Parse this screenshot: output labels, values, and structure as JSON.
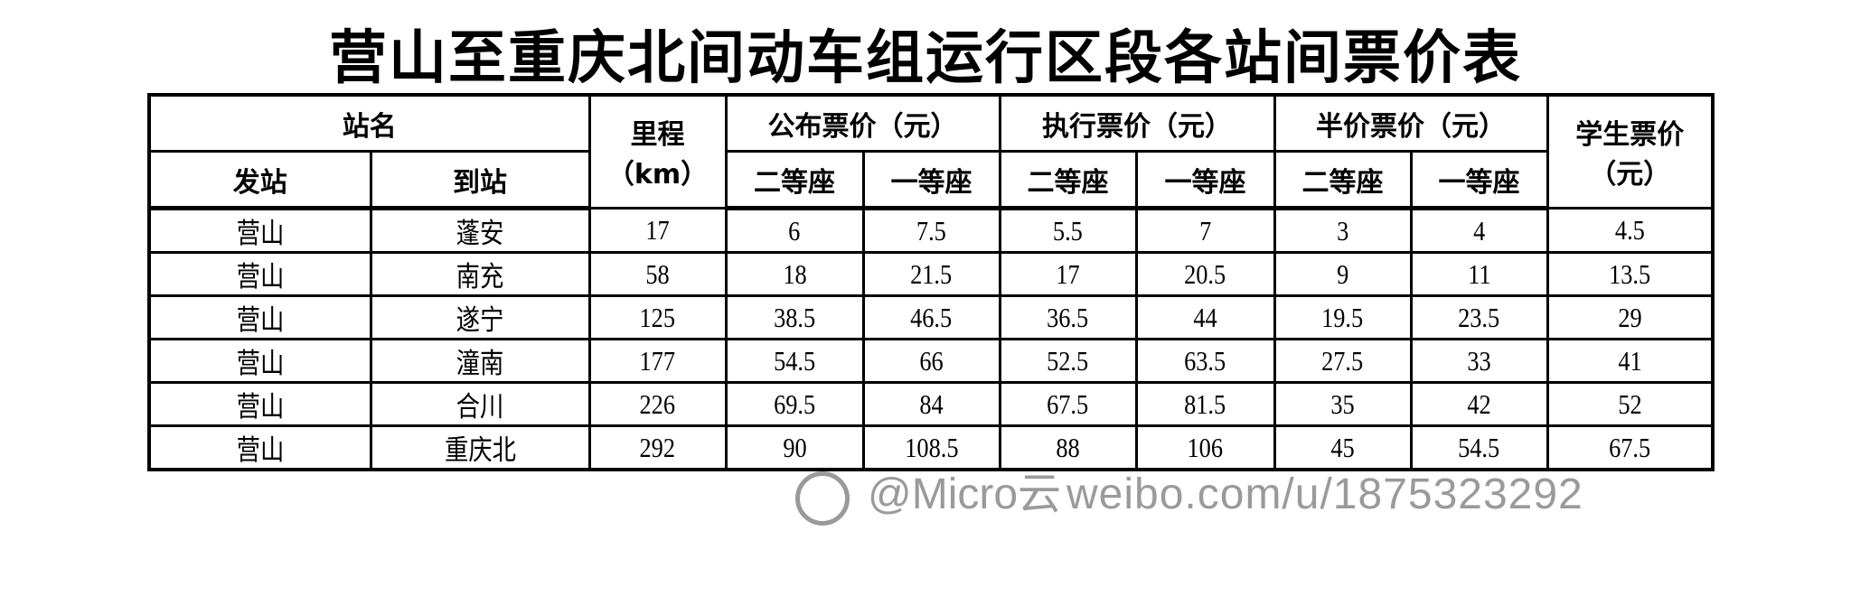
{
  "title": "营山至重庆北间动车组运行区段各站间票价表",
  "header": {
    "station_name": "站名",
    "from": "发站",
    "to": "到站",
    "distance": "里程",
    "distance_unit": "（km）",
    "published": "公布票价（元）",
    "executed": "执行票价（元）",
    "half": "半价票价（元）",
    "student": "学生票价",
    "student_unit": "（元）",
    "second_class": "二等座",
    "first_class": "一等座"
  },
  "rows": [
    {
      "from": "营山",
      "to": "蓬安",
      "km": "17",
      "pub2": "6",
      "pub1": "7.5",
      "exe2": "5.5",
      "exe1": "7",
      "half2": "3",
      "half1": "4",
      "student": "4.5"
    },
    {
      "from": "营山",
      "to": "南充",
      "km": "58",
      "pub2": "18",
      "pub1": "21.5",
      "exe2": "17",
      "exe1": "20.5",
      "half2": "9",
      "half1": "11",
      "student": "13.5"
    },
    {
      "from": "营山",
      "to": "遂宁",
      "km": "125",
      "pub2": "38.5",
      "pub1": "46.5",
      "exe2": "36.5",
      "exe1": "44",
      "half2": "19.5",
      "half1": "23.5",
      "student": "29"
    },
    {
      "from": "营山",
      "to": "潼南",
      "km": "177",
      "pub2": "54.5",
      "pub1": "66",
      "exe2": "52.5",
      "exe1": "63.5",
      "half2": "27.5",
      "half1": "33",
      "student": "41"
    },
    {
      "from": "营山",
      "to": "合川",
      "km": "226",
      "pub2": "69.5",
      "pub1": "84",
      "exe2": "67.5",
      "exe1": "81.5",
      "half2": "35",
      "half1": "42",
      "student": "52"
    },
    {
      "from": "营山",
      "to": "重庆北",
      "km": "292",
      "pub2": "90",
      "pub1": "108.5",
      "exe2": "88",
      "exe1": "106",
      "half2": "45",
      "half1": "54.5",
      "student": "67.5"
    }
  ],
  "watermark": {
    "handle": "@Micro云",
    "url": "weibo.com/u/1875323292",
    "icon": "weibo-logo-icon"
  }
}
